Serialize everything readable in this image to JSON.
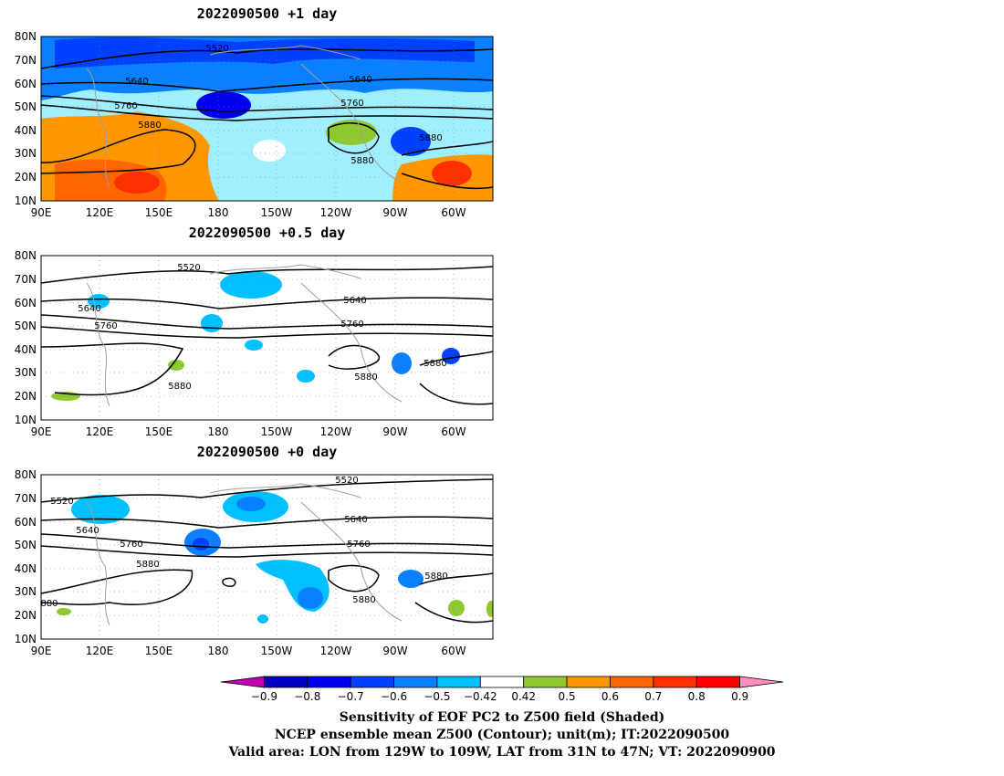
{
  "panels": [
    {
      "title": "2022090500  +1 day",
      "contour_labels": [
        "5520",
        "5640",
        "5640",
        "5760",
        "5760",
        "5880",
        "5880",
        "5880"
      ]
    },
    {
      "title": "2022090500  +0.5 day",
      "contour_labels": [
        "5520",
        "5640",
        "5640",
        "5760",
        "5760",
        "5880",
        "5880",
        "5880"
      ]
    },
    {
      "title": "2022090500  +0 day",
      "contour_labels": [
        "5520",
        "5520",
        "5640",
        "5640",
        "5760",
        "5760",
        "5880",
        "5880",
        "5880",
        "880"
      ]
    }
  ],
  "axes": {
    "lat_labels": [
      "80N",
      "70N",
      "60N",
      "50N",
      "40N",
      "30N",
      "20N",
      "10N"
    ],
    "lon_labels": [
      "90E",
      "120E",
      "150E",
      "180",
      "150W",
      "120W",
      "90W",
      "60W"
    ]
  },
  "colorbar": {
    "ticks": [
      "-0.9",
      "-0.8",
      "-0.7",
      "-0.6",
      "-0.5",
      "-0.42",
      "0.42",
      "0.5",
      "0.6",
      "0.7",
      "0.8",
      "0.9"
    ],
    "colors": [
      "#c000b0",
      "#0000c0",
      "#0000f0",
      "#0040ff",
      "#0a80ff",
      "#00c0ff",
      "#ffffff",
      "#90c830",
      "#ff9800",
      "#ff6600",
      "#ff3000",
      "#ff0000",
      "#ff90c0"
    ]
  },
  "caption": {
    "line1": "Sensitivity of EOF PC2 to Z500 field (Shaded)",
    "line2": "NCEP ensemble mean Z500 (Contour); unit(m); IT:2022090500",
    "line3": "Valid area: LON from 129W to 109W, LAT from 31N to 47N; VT: 2022090900"
  }
}
